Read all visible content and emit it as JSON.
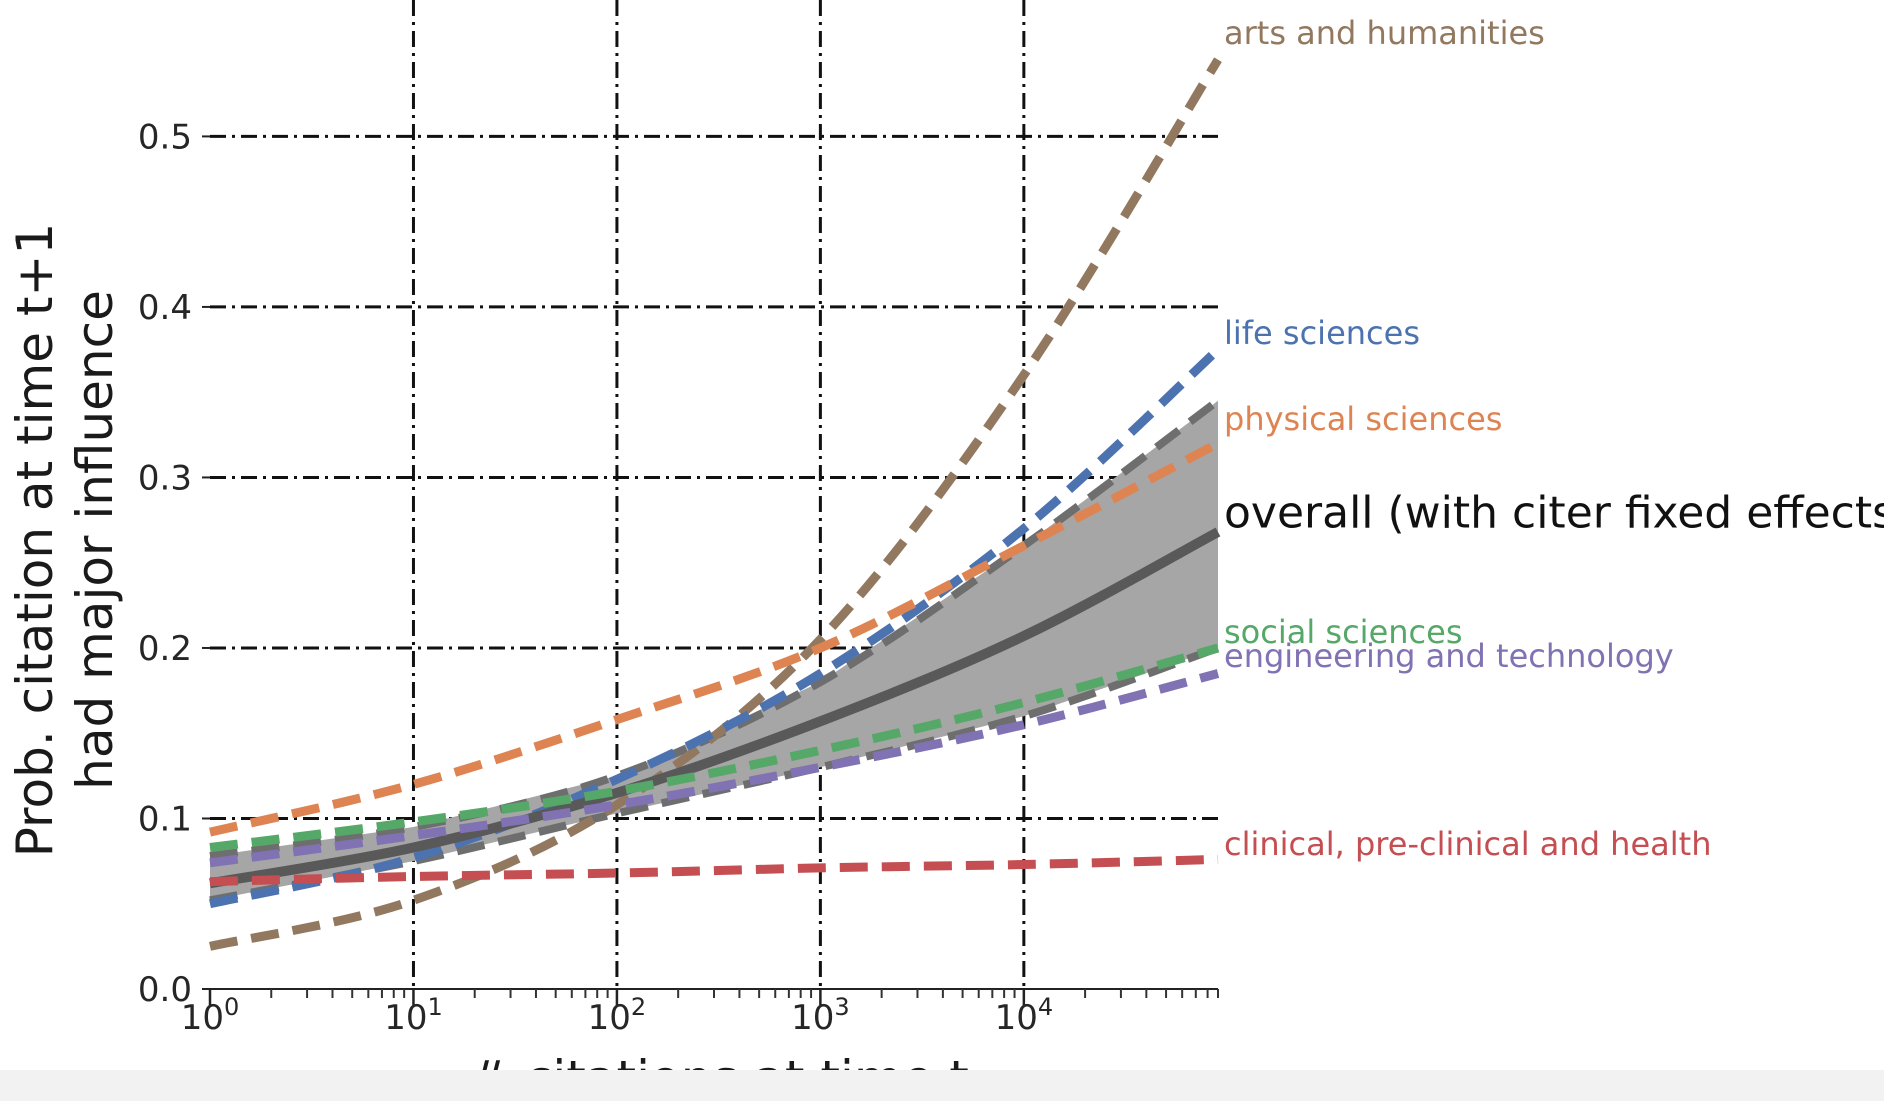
{
  "chart_data": {
    "type": "line",
    "title": "",
    "xlabel": "# citations at time t",
    "ylabel_lines": [
      "Prob. citation at time t+1",
      "had major influence"
    ],
    "x_scale": "log",
    "xlim": [
      1,
      90000
    ],
    "ylim": [
      0,
      0.58
    ],
    "x_ticks": [
      {
        "value": 1,
        "base": "10",
        "exp": "0"
      },
      {
        "value": 10,
        "base": "10",
        "exp": "1"
      },
      {
        "value": 100,
        "base": "10",
        "exp": "2"
      },
      {
        "value": 1000,
        "base": "10",
        "exp": "3"
      },
      {
        "value": 10000,
        "base": "10",
        "exp": "4"
      }
    ],
    "y_ticks": [
      {
        "value": 0.0,
        "label": "0.0"
      },
      {
        "value": 0.1,
        "label": "0.1"
      },
      {
        "value": 0.2,
        "label": "0.2"
      },
      {
        "value": 0.3,
        "label": "0.3"
      },
      {
        "value": 0.4,
        "label": "0.4"
      },
      {
        "value": 0.5,
        "label": "0.5"
      }
    ],
    "grid": true,
    "grid_style": "dash-dot",
    "x": [
      1,
      10,
      100,
      1000,
      10000,
      90000
    ],
    "series": [
      {
        "name": "arts and humanities",
        "color": "#937860",
        "style": "dashed",
        "values": [
          0.025,
          0.052,
          0.108,
          0.205,
          0.36,
          0.545
        ]
      },
      {
        "name": "life sciences",
        "color": "#4c72b0",
        "style": "dashed",
        "values": [
          0.05,
          0.077,
          0.123,
          0.185,
          0.27,
          0.375
        ]
      },
      {
        "name": "physical sciences",
        "color": "#dd8452",
        "style": "dashed",
        "values": [
          0.092,
          0.12,
          0.158,
          0.2,
          0.26,
          0.32
        ]
      },
      {
        "name": "overall (with citer fixed effects)",
        "color": "#595959",
        "style": "solid",
        "values": [
          0.062,
          0.083,
          0.115,
          0.157,
          0.207,
          0.268
        ],
        "band_low": [
          0.052,
          0.075,
          0.103,
          0.13,
          0.16,
          0.2
        ],
        "band_high": [
          0.078,
          0.095,
          0.125,
          0.18,
          0.26,
          0.345
        ]
      },
      {
        "name": "social sciences",
        "color": "#55a868",
        "style": "dashed",
        "values": [
          0.083,
          0.098,
          0.116,
          0.14,
          0.168,
          0.2
        ]
      },
      {
        "name": "engineering and technology",
        "color": "#8172b3",
        "style": "dashed",
        "values": [
          0.074,
          0.09,
          0.108,
          0.13,
          0.155,
          0.185
        ]
      },
      {
        "name": "clinical, pre-clinical and health",
        "color": "#c44e52",
        "style": "dashed",
        "values": [
          0.063,
          0.066,
          0.068,
          0.071,
          0.073,
          0.076
        ]
      }
    ]
  }
}
